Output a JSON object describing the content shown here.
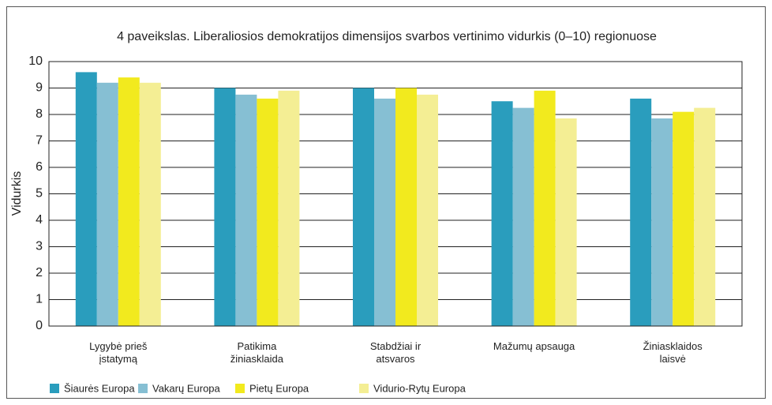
{
  "chart_data": {
    "type": "bar",
    "title": "4 paveikslas. Liberaliosios demokratijos dimensijos svarbos vertinimo vidurkis (0–10) regionuose",
    "y_label": "Vidurkis",
    "categories": [
      "Lygybė prieš įstatymą",
      "Patikima žiniasklaida",
      "Stabdžiai ir atsvaros",
      "Mažumų apsauga",
      "Žiniasklaidos laisvė"
    ],
    "series": [
      {
        "name": "Šiaurės Europa",
        "color": "#2a9dbd",
        "values": [
          9.6,
          9.0,
          9.0,
          8.5,
          8.6
        ]
      },
      {
        "name": "Vakarų Europa",
        "color": "#86bfd3",
        "values": [
          9.2,
          8.75,
          8.6,
          8.25,
          7.85
        ]
      },
      {
        "name": "Pietų Europa",
        "color": "#f2ea1e",
        "values": [
          9.4,
          8.6,
          9.0,
          8.9,
          8.1
        ]
      },
      {
        "name": "Vidurio-Rytų Europa",
        "color": "#f4ee94",
        "values": [
          9.2,
          8.9,
          8.75,
          7.85,
          8.25
        ]
      }
    ],
    "ylim": [
      0,
      10
    ],
    "yticks": [
      0,
      1,
      2,
      3,
      4,
      5,
      6,
      7,
      8,
      9,
      10
    ],
    "grid": true,
    "legend": "bottom"
  }
}
